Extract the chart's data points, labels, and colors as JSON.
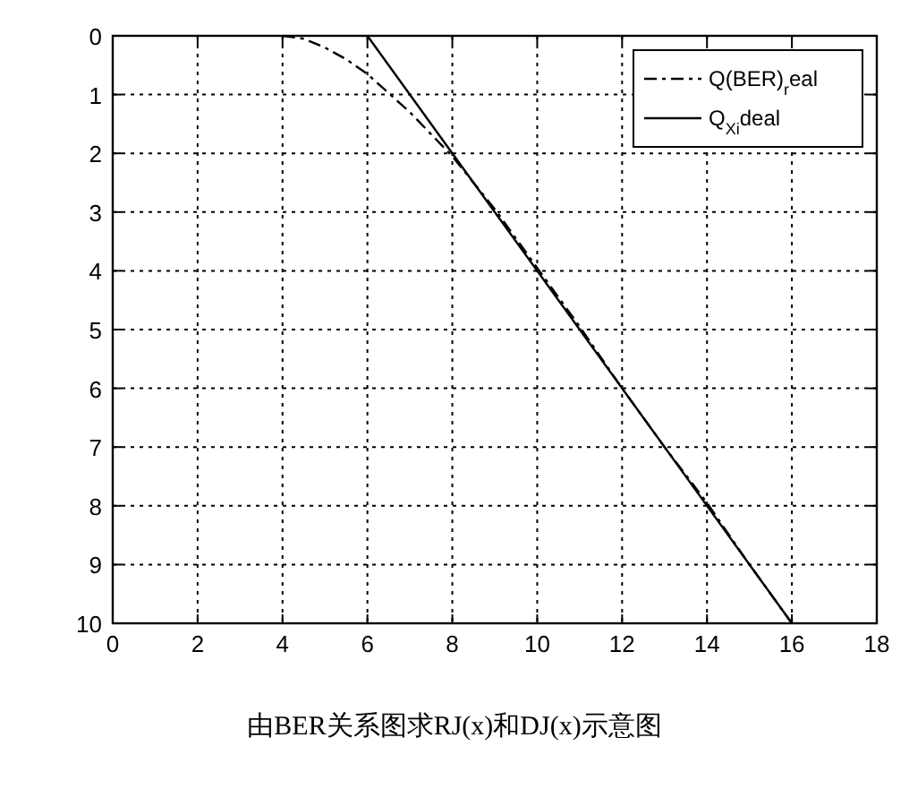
{
  "chart_data": {
    "type": "line",
    "title": "由BER关系图求RJ(x)和DJ(x)示意图",
    "xlim": [
      0,
      18
    ],
    "ylim": [
      10,
      0
    ],
    "xticks": [
      0,
      2,
      4,
      6,
      8,
      10,
      12,
      14,
      16,
      18
    ],
    "yticks": [
      0,
      1,
      2,
      3,
      4,
      5,
      6,
      7,
      8,
      9,
      10
    ],
    "grid": true,
    "legend": "top right",
    "series": [
      {
        "name": "Q(BER)$_{r}$eal",
        "color": "#000000",
        "line_style": "dashed",
        "x": [
          4,
          4.5,
          5,
          5.5,
          6,
          7,
          8,
          9,
          10,
          11,
          12,
          13,
          14,
          15,
          16
        ],
        "values": [
          0,
          0.05,
          0.2,
          0.4,
          0.65,
          1.3,
          2.05,
          2.95,
          3.95,
          4.95,
          6,
          7,
          7.95,
          9,
          10
        ]
      },
      {
        "name": "Q$_{Xi}$deal",
        "color": "#000000",
        "line_style": "solid",
        "x": [
          6,
          16
        ],
        "values": [
          0,
          10
        ]
      }
    ]
  }
}
